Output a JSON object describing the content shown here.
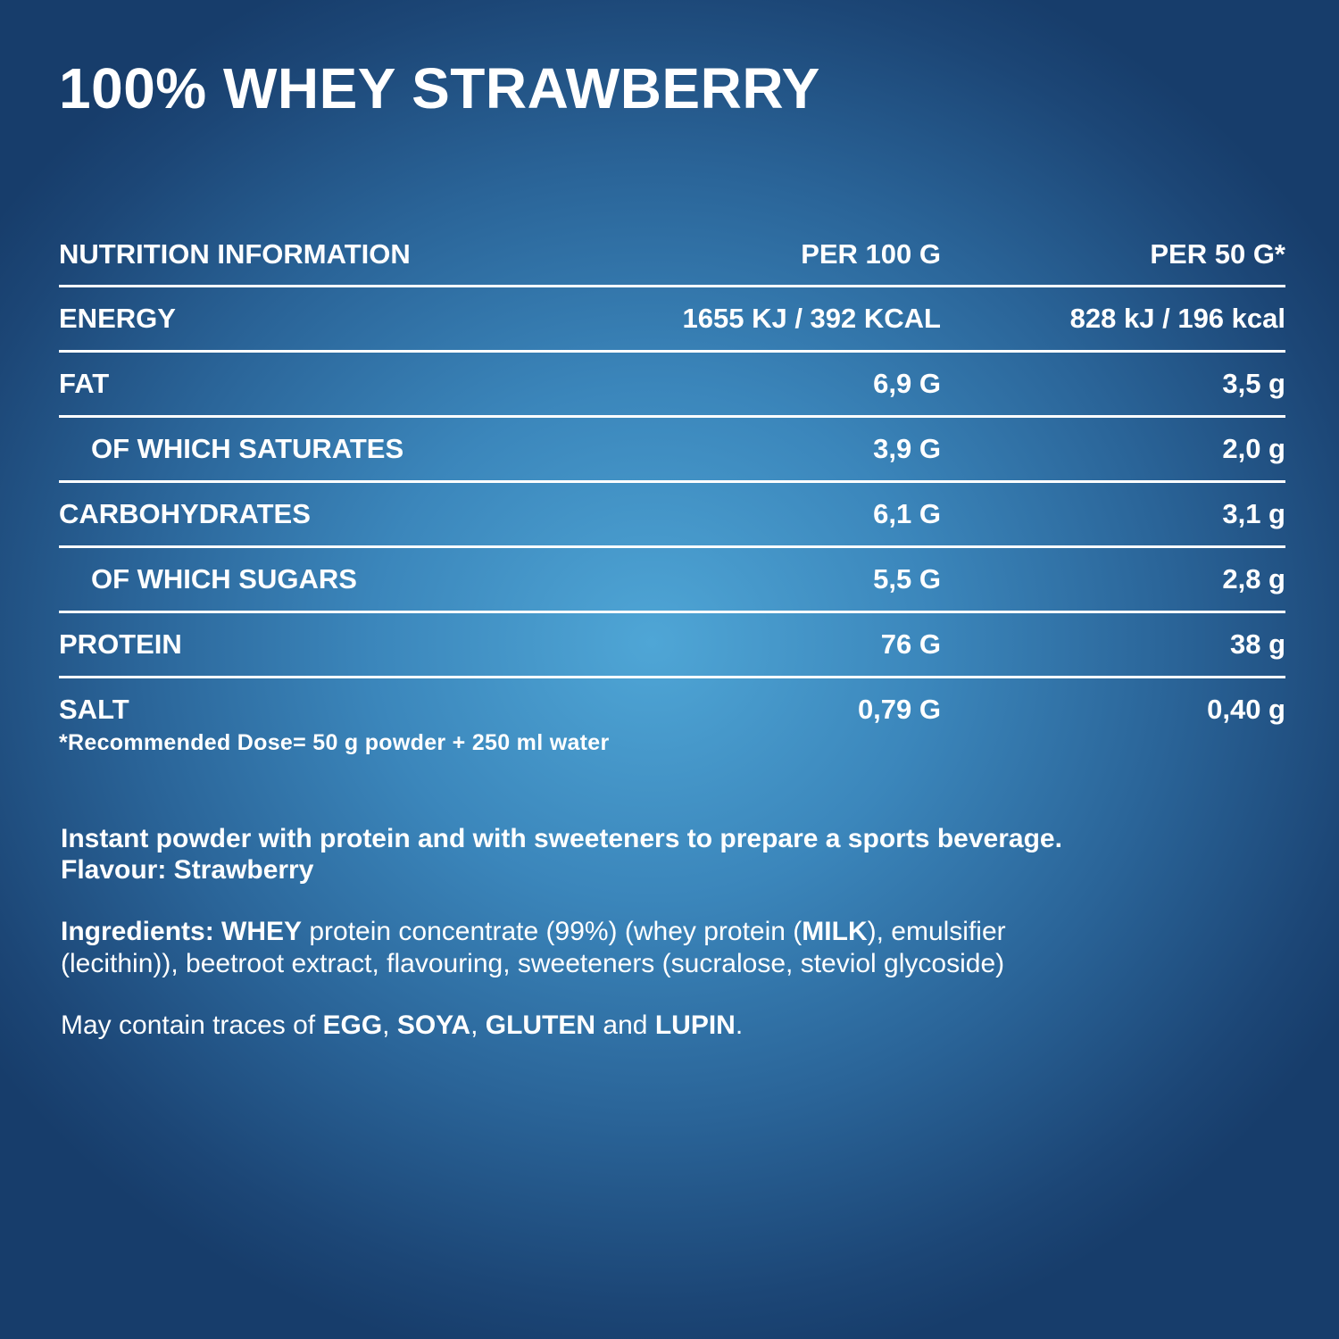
{
  "title": "100% WHEY STRAWBERRY",
  "table": {
    "header": {
      "label": "NUTRITION INFORMATION",
      "per100": "PER 100 G",
      "per50": "PER 50 G*"
    },
    "rows": [
      {
        "label": "ENERGY",
        "per100": "1655 KJ / 392 KCAL",
        "per50": "828 kJ / 196 kcal",
        "indent": false
      },
      {
        "label": "FAT",
        "per100": "6,9 G",
        "per50": "3,5 g",
        "indent": false
      },
      {
        "label": "OF WHICH SATURATES",
        "per100": "3,9 G",
        "per50": "2,0 g",
        "indent": true
      },
      {
        "label": "CARBOHYDRATES",
        "per100": "6,1 G",
        "per50": "3,1 g",
        "indent": false
      },
      {
        "label": "OF WHICH SUGARS",
        "per100": "5,5 G",
        "per50": "2,8 g",
        "indent": true
      },
      {
        "label": "PROTEIN",
        "per100": "76 G",
        "per50": "38 g",
        "indent": false
      },
      {
        "label": "SALT",
        "per100": "0,79 G",
        "per50": "0,40 g",
        "indent": false
      }
    ]
  },
  "footnote": "*Recommended Dose= 50 g powder + 250 ml water",
  "description": {
    "line1": "Instant powder with protein and with sweeteners to prepare a sports beverage.",
    "line2": "Flavour: Strawberry"
  },
  "ingredients": {
    "label": "Ingredients: ",
    "whey": "WHEY",
    "part1": " protein concentrate (99%) (whey protein (",
    "milk": "MILK",
    "part2": "), emulsifier",
    "line2": "(lecithin)), beetroot extract, flavouring, sweeteners (sucralose, steviol glycoside)"
  },
  "traces": {
    "prefix": "May contain traces of ",
    "egg": "EGG",
    "sep1": ", ",
    "soya": "SOYA",
    "sep2": ", ",
    "gluten": "GLUTEN",
    "and": " and ",
    "lupin": "LUPIN",
    "end": "."
  }
}
